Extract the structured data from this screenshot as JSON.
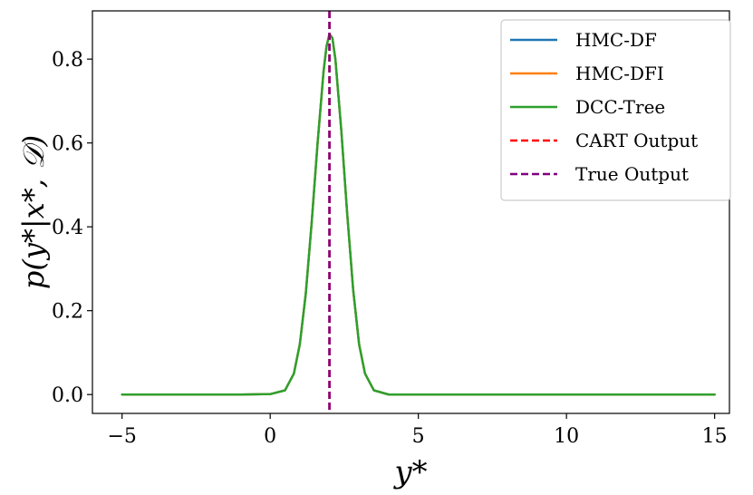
{
  "chart_data": {
    "type": "line",
    "title": "",
    "xlabel": "y*",
    "ylabel": "p(y*|x*, 𝒟)",
    "xlim": [
      -6,
      15.5
    ],
    "ylim": [
      -0.045,
      0.915
    ],
    "xticks": [
      -5,
      0,
      5,
      10,
      15
    ],
    "xtick_labels": [
      "−5",
      "0",
      "5",
      "10",
      "15"
    ],
    "yticks": [
      0.0,
      0.2,
      0.4,
      0.6,
      0.8
    ],
    "ytick_labels": [
      "0.0",
      "0.2",
      "0.4",
      "0.6",
      "0.8"
    ],
    "grid": false,
    "legend_position": "top-right",
    "x": [
      -5,
      -3,
      -1,
      0,
      0.5,
      0.8,
      1.0,
      1.2,
      1.4,
      1.6,
      1.8,
      1.9,
      2.0,
      2.1,
      2.2,
      2.4,
      2.6,
      2.8,
      3.0,
      3.2,
      3.5,
      4,
      6,
      10,
      15
    ],
    "series": [
      {
        "name": "HMC-DF",
        "color": "#1f77b4",
        "values": [
          0.0,
          0.0,
          0.0,
          0.001,
          0.01,
          0.05,
          0.12,
          0.24,
          0.41,
          0.6,
          0.77,
          0.83,
          0.86,
          0.85,
          0.8,
          0.63,
          0.43,
          0.25,
          0.12,
          0.05,
          0.01,
          0.0,
          0.0,
          0.0,
          0.0
        ]
      },
      {
        "name": "HMC-DFI",
        "color": "#ff7f0e",
        "values": [
          0.0,
          0.0,
          0.0,
          0.001,
          0.01,
          0.05,
          0.12,
          0.24,
          0.41,
          0.6,
          0.77,
          0.83,
          0.86,
          0.85,
          0.8,
          0.63,
          0.43,
          0.25,
          0.12,
          0.05,
          0.01,
          0.0,
          0.0,
          0.0,
          0.0
        ]
      },
      {
        "name": "DCC-Tree",
        "color": "#2ca02c",
        "values": [
          0.0,
          0.0,
          0.0,
          0.001,
          0.01,
          0.05,
          0.12,
          0.24,
          0.41,
          0.6,
          0.77,
          0.83,
          0.86,
          0.85,
          0.8,
          0.63,
          0.43,
          0.25,
          0.12,
          0.05,
          0.01,
          0.0,
          0.0,
          0.0,
          0.0
        ]
      }
    ],
    "vlines": [
      {
        "name": "CART Output",
        "x": 2.0,
        "color": "#ff0000",
        "style": "dashed"
      },
      {
        "name": "True Output",
        "x": 2.0,
        "color": "#800080",
        "style": "dashed"
      }
    ]
  }
}
